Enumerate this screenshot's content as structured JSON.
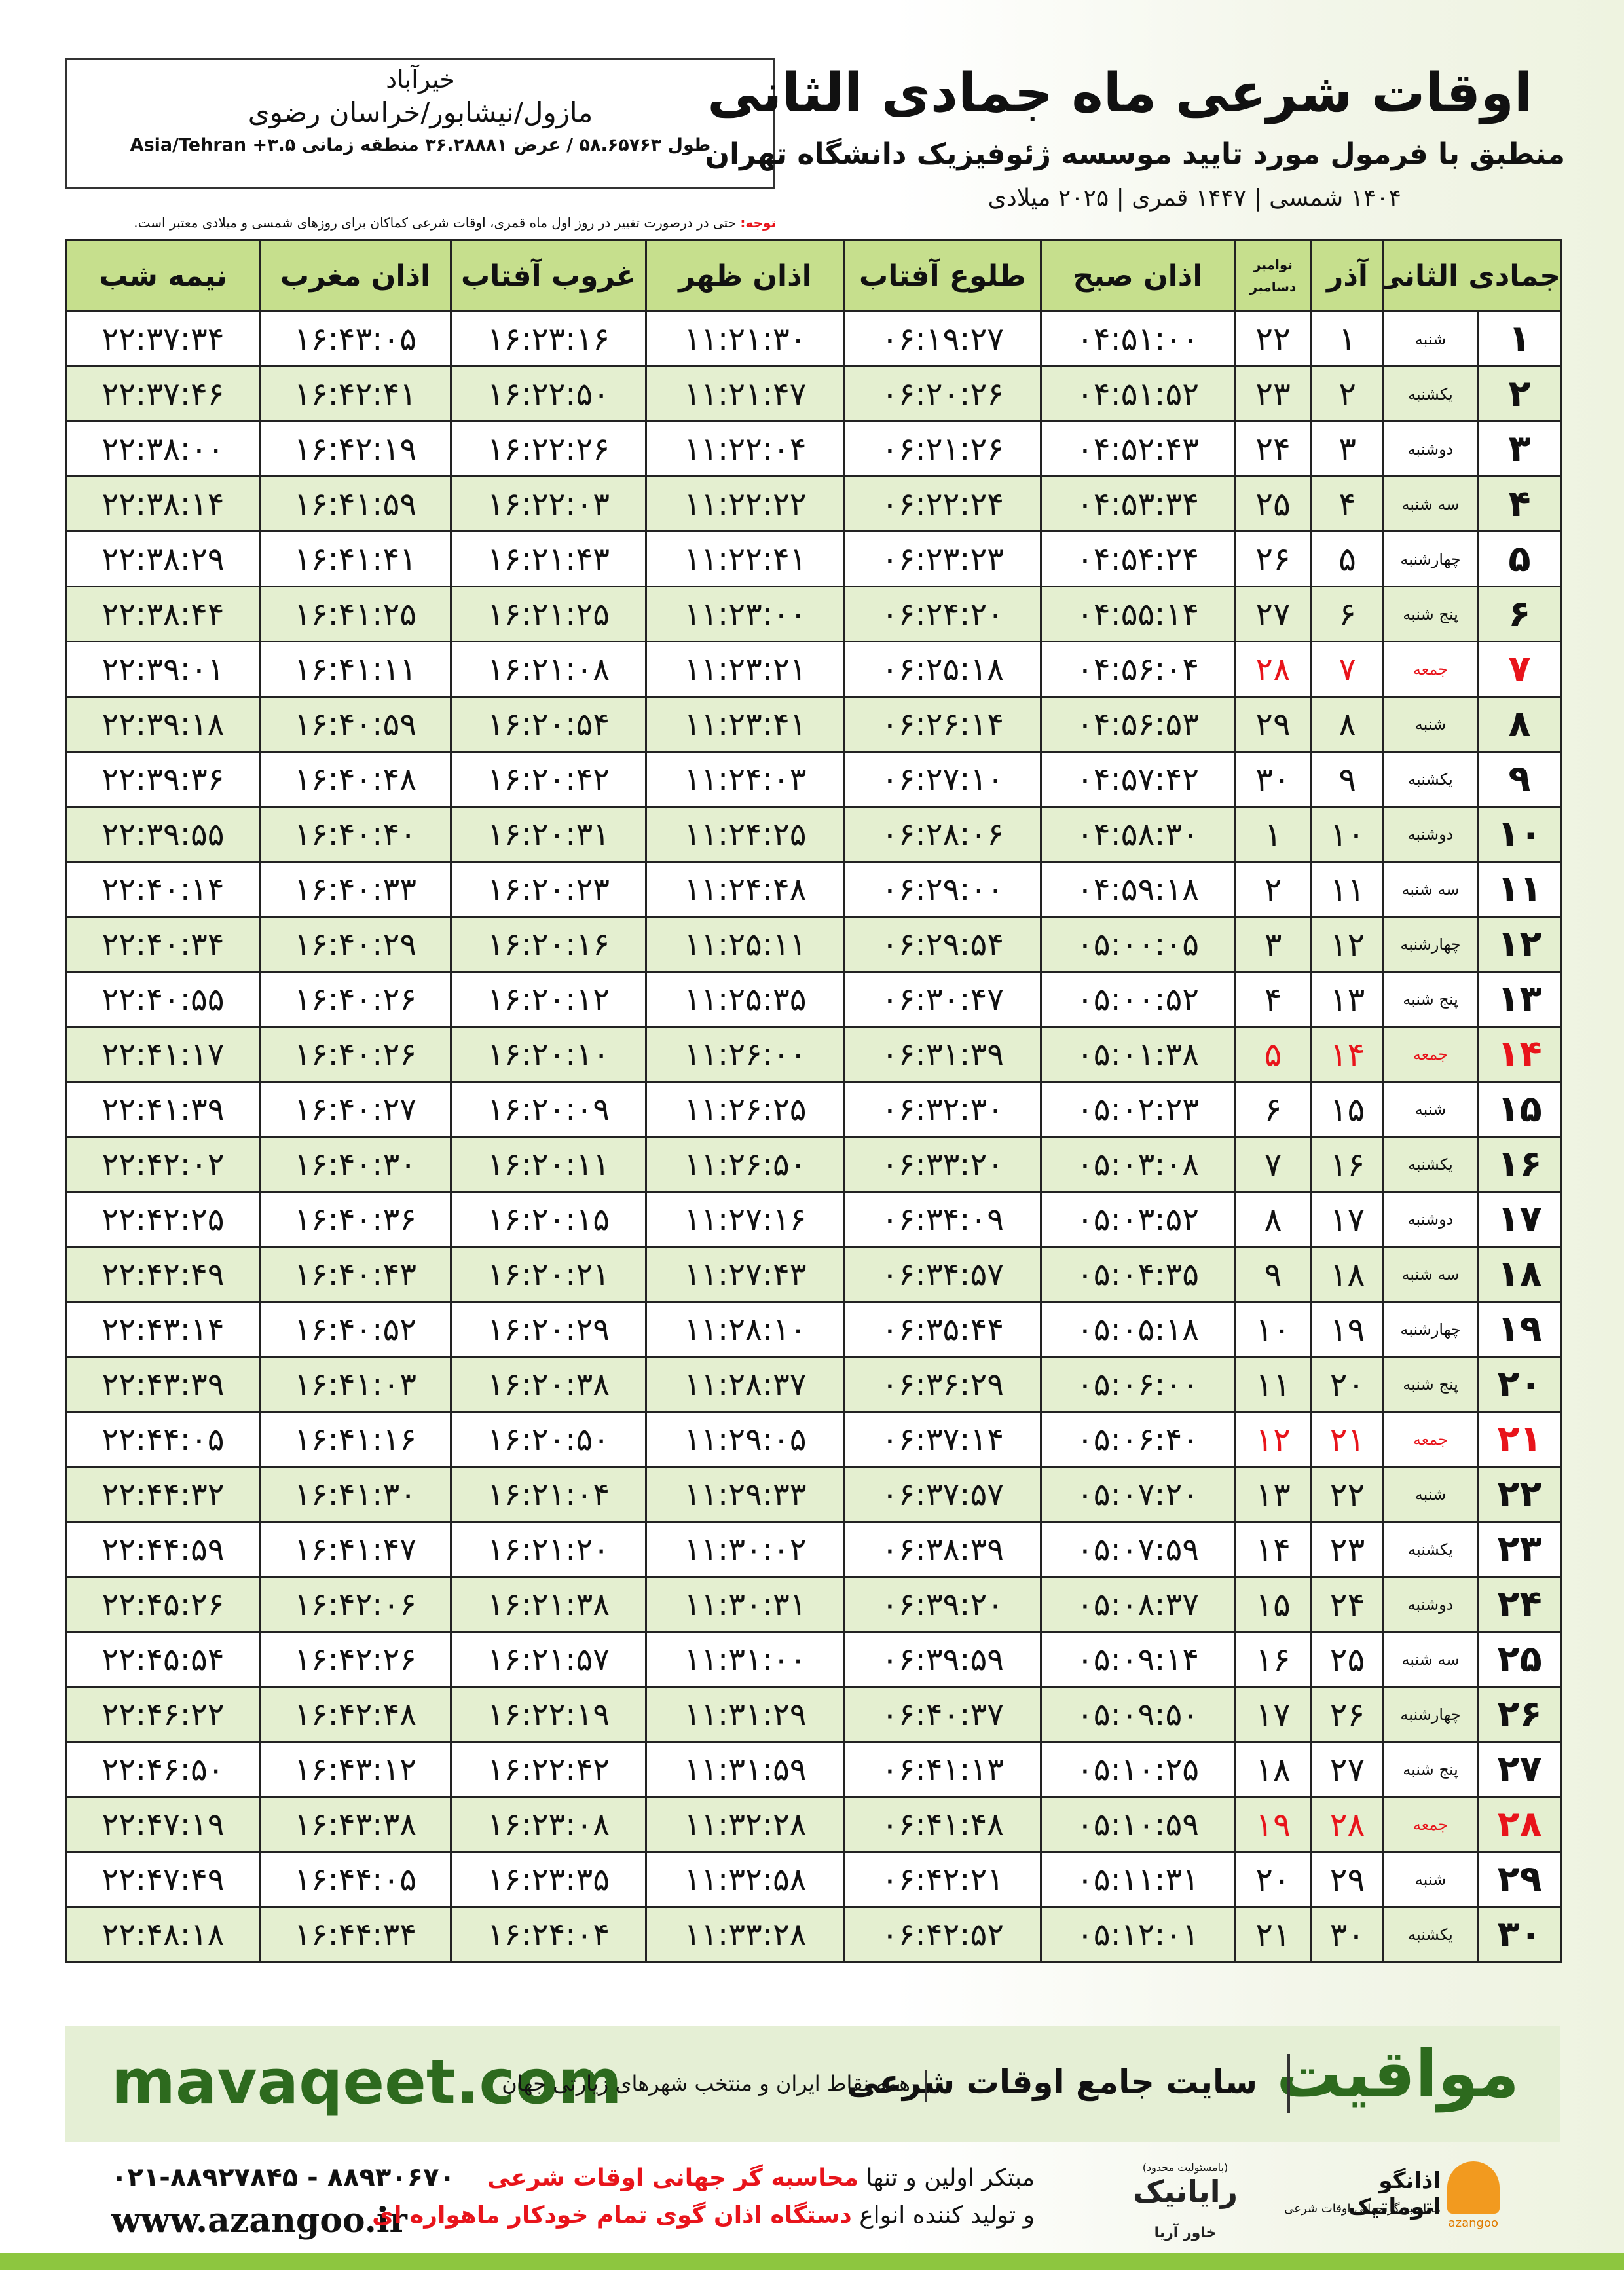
{
  "header": {
    "title": "اوقات شرعی ماه جمادی الثانی",
    "subtitle": "منطبق با فرمول مورد تایید موسسه ژئوفیزیک دانشگاه تهران",
    "years": "۱۴۰۴ شمسی | ۱۴۴۷ قمری | ۲۰۲۵ میلادی"
  },
  "location": {
    "city": "خیرآباد",
    "region": "مازول/نیشابور/خراسان رضوی",
    "coords": "طول ۵۸.۶۵۷۶۳ / عرض ۳۶.۲۸۸۸۱ منطقه زمانی ۳.۵+ Asia/Tehran"
  },
  "note": {
    "label": "توجه:",
    "text": "حتی در درصورت تغییر در روز اول ماه قمری، اوقات شرعی کماکان برای روزهای شمسی و میلادی معتبر است."
  },
  "table": {
    "highlight_color": "#e8141b",
    "columns": [
      "جمادی الثانی",
      "آذر",
      [
        "نوامبر",
        "دسامبر"
      ],
      "اذان صبح",
      "طلوع آفتاب",
      "اذان ظهر",
      "غروب آفتاب",
      "اذان مغرب",
      "نیمه شب"
    ],
    "rows": [
      {
        "highlight": false,
        "cells": [
          "۱",
          "شنبه",
          "۱",
          "۲۲",
          "۰۴:۵۱:۰۰",
          "۰۶:۱۹:۲۷",
          "۱۱:۲۱:۳۰",
          "۱۶:۲۳:۱۶",
          "۱۶:۴۳:۰۵",
          "۲۲:۳۷:۳۴"
        ]
      },
      {
        "highlight": false,
        "cells": [
          "۲",
          "یکشنبه",
          "۲",
          "۲۳",
          "۰۴:۵۱:۵۲",
          "۰۶:۲۰:۲۶",
          "۱۱:۲۱:۴۷",
          "۱۶:۲۲:۵۰",
          "۱۶:۴۲:۴۱",
          "۲۲:۳۷:۴۶"
        ]
      },
      {
        "highlight": false,
        "cells": [
          "۳",
          "دوشنبه",
          "۳",
          "۲۴",
          "۰۴:۵۲:۴۳",
          "۰۶:۲۱:۲۶",
          "۱۱:۲۲:۰۴",
          "۱۶:۲۲:۲۶",
          "۱۶:۴۲:۱۹",
          "۲۲:۳۸:۰۰"
        ]
      },
      {
        "highlight": false,
        "cells": [
          "۴",
          "سه شنبه",
          "۴",
          "۲۵",
          "۰۴:۵۳:۳۴",
          "۰۶:۲۲:۲۴",
          "۱۱:۲۲:۲۲",
          "۱۶:۲۲:۰۳",
          "۱۶:۴۱:۵۹",
          "۲۲:۳۸:۱۴"
        ]
      },
      {
        "highlight": false,
        "cells": [
          "۵",
          "چهارشنبه",
          "۵",
          "۲۶",
          "۰۴:۵۴:۲۴",
          "۰۶:۲۳:۲۳",
          "۱۱:۲۲:۴۱",
          "۱۶:۲۱:۴۳",
          "۱۶:۴۱:۴۱",
          "۲۲:۳۸:۲۹"
        ]
      },
      {
        "highlight": false,
        "cells": [
          "۶",
          "پنج شنبه",
          "۶",
          "۲۷",
          "۰۴:۵۵:۱۴",
          "۰۶:۲۴:۲۰",
          "۱۱:۲۳:۰۰",
          "۱۶:۲۱:۲۵",
          "۱۶:۴۱:۲۵",
          "۲۲:۳۸:۴۴"
        ]
      },
      {
        "highlight": true,
        "cells": [
          "۷",
          "جمعه",
          "۷",
          "۲۸",
          "۰۴:۵۶:۰۴",
          "۰۶:۲۵:۱۸",
          "۱۱:۲۳:۲۱",
          "۱۶:۲۱:۰۸",
          "۱۶:۴۱:۱۱",
          "۲۲:۳۹:۰۱"
        ]
      },
      {
        "highlight": false,
        "cells": [
          "۸",
          "شنبه",
          "۸",
          "۲۹",
          "۰۴:۵۶:۵۳",
          "۰۶:۲۶:۱۴",
          "۱۱:۲۳:۴۱",
          "۱۶:۲۰:۵۴",
          "۱۶:۴۰:۵۹",
          "۲۲:۳۹:۱۸"
        ]
      },
      {
        "highlight": false,
        "cells": [
          "۹",
          "یکشنبه",
          "۹",
          "۳۰",
          "۰۴:۵۷:۴۲",
          "۰۶:۲۷:۱۰",
          "۱۱:۲۴:۰۳",
          "۱۶:۲۰:۴۲",
          "۱۶:۴۰:۴۸",
          "۲۲:۳۹:۳۶"
        ]
      },
      {
        "highlight": false,
        "cells": [
          "۱۰",
          "دوشنبه",
          "۱۰",
          "۱",
          "۰۴:۵۸:۳۰",
          "۰۶:۲۸:۰۶",
          "۱۱:۲۴:۲۵",
          "۱۶:۲۰:۳۱",
          "۱۶:۴۰:۴۰",
          "۲۲:۳۹:۵۵"
        ]
      },
      {
        "highlight": false,
        "cells": [
          "۱۱",
          "سه شنبه",
          "۱۱",
          "۲",
          "۰۴:۵۹:۱۸",
          "۰۶:۲۹:۰۰",
          "۱۱:۲۴:۴۸",
          "۱۶:۲۰:۲۳",
          "۱۶:۴۰:۳۳",
          "۲۲:۴۰:۱۴"
        ]
      },
      {
        "highlight": false,
        "cells": [
          "۱۲",
          "چهارشنبه",
          "۱۲",
          "۳",
          "۰۵:۰۰:۰۵",
          "۰۶:۲۹:۵۴",
          "۱۱:۲۵:۱۱",
          "۱۶:۲۰:۱۶",
          "۱۶:۴۰:۲۹",
          "۲۲:۴۰:۳۴"
        ]
      },
      {
        "highlight": false,
        "cells": [
          "۱۳",
          "پنج شنبه",
          "۱۳",
          "۴",
          "۰۵:۰۰:۵۲",
          "۰۶:۳۰:۴۷",
          "۱۱:۲۵:۳۵",
          "۱۶:۲۰:۱۲",
          "۱۶:۴۰:۲۶",
          "۲۲:۴۰:۵۵"
        ]
      },
      {
        "highlight": true,
        "cells": [
          "۱۴",
          "جمعه",
          "۱۴",
          "۵",
          "۰۵:۰۱:۳۸",
          "۰۶:۳۱:۳۹",
          "۱۱:۲۶:۰۰",
          "۱۶:۲۰:۱۰",
          "۱۶:۴۰:۲۶",
          "۲۲:۴۱:۱۷"
        ]
      },
      {
        "highlight": false,
        "cells": [
          "۱۵",
          "شنبه",
          "۱۵",
          "۶",
          "۰۵:۰۲:۲۳",
          "۰۶:۳۲:۳۰",
          "۱۱:۲۶:۲۵",
          "۱۶:۲۰:۰۹",
          "۱۶:۴۰:۲۷",
          "۲۲:۴۱:۳۹"
        ]
      },
      {
        "highlight": false,
        "cells": [
          "۱۶",
          "یکشنبه",
          "۱۶",
          "۷",
          "۰۵:۰۳:۰۸",
          "۰۶:۳۳:۲۰",
          "۱۱:۲۶:۵۰",
          "۱۶:۲۰:۱۱",
          "۱۶:۴۰:۳۰",
          "۲۲:۴۲:۰۲"
        ]
      },
      {
        "highlight": false,
        "cells": [
          "۱۷",
          "دوشنبه",
          "۱۷",
          "۸",
          "۰۵:۰۳:۵۲",
          "۰۶:۳۴:۰۹",
          "۱۱:۲۷:۱۶",
          "۱۶:۲۰:۱۵",
          "۱۶:۴۰:۳۶",
          "۲۲:۴۲:۲۵"
        ]
      },
      {
        "highlight": false,
        "cells": [
          "۱۸",
          "سه شنبه",
          "۱۸",
          "۹",
          "۰۵:۰۴:۳۵",
          "۰۶:۳۴:۵۷",
          "۱۱:۲۷:۴۳",
          "۱۶:۲۰:۲۱",
          "۱۶:۴۰:۴۳",
          "۲۲:۴۲:۴۹"
        ]
      },
      {
        "highlight": false,
        "cells": [
          "۱۹",
          "چهارشنبه",
          "۱۹",
          "۱۰",
          "۰۵:۰۵:۱۸",
          "۰۶:۳۵:۴۴",
          "۱۱:۲۸:۱۰",
          "۱۶:۲۰:۲۹",
          "۱۶:۴۰:۵۲",
          "۲۲:۴۳:۱۴"
        ]
      },
      {
        "highlight": false,
        "cells": [
          "۲۰",
          "پنج شنبه",
          "۲۰",
          "۱۱",
          "۰۵:۰۶:۰۰",
          "۰۶:۳۶:۲۹",
          "۱۱:۲۸:۳۷",
          "۱۶:۲۰:۳۸",
          "۱۶:۴۱:۰۳",
          "۲۲:۴۳:۳۹"
        ]
      },
      {
        "highlight": true,
        "cells": [
          "۲۱",
          "جمعه",
          "۲۱",
          "۱۲",
          "۰۵:۰۶:۴۰",
          "۰۶:۳۷:۱۴",
          "۱۱:۲۹:۰۵",
          "۱۶:۲۰:۵۰",
          "۱۶:۴۱:۱۶",
          "۲۲:۴۴:۰۵"
        ]
      },
      {
        "highlight": false,
        "cells": [
          "۲۲",
          "شنبه",
          "۲۲",
          "۱۳",
          "۰۵:۰۷:۲۰",
          "۰۶:۳۷:۵۷",
          "۱۱:۲۹:۳۳",
          "۱۶:۲۱:۰۴",
          "۱۶:۴۱:۳۰",
          "۲۲:۴۴:۳۲"
        ]
      },
      {
        "highlight": false,
        "cells": [
          "۲۳",
          "یکشنبه",
          "۲۳",
          "۱۴",
          "۰۵:۰۷:۵۹",
          "۰۶:۳۸:۳۹",
          "۱۱:۳۰:۰۲",
          "۱۶:۲۱:۲۰",
          "۱۶:۴۱:۴۷",
          "۲۲:۴۴:۵۹"
        ]
      },
      {
        "highlight": false,
        "cells": [
          "۲۴",
          "دوشنبه",
          "۲۴",
          "۱۵",
          "۰۵:۰۸:۳۷",
          "۰۶:۳۹:۲۰",
          "۱۱:۳۰:۳۱",
          "۱۶:۲۱:۳۸",
          "۱۶:۴۲:۰۶",
          "۲۲:۴۵:۲۶"
        ]
      },
      {
        "highlight": false,
        "cells": [
          "۲۵",
          "سه شنبه",
          "۲۵",
          "۱۶",
          "۰۵:۰۹:۱۴",
          "۰۶:۳۹:۵۹",
          "۱۱:۳۱:۰۰",
          "۱۶:۲۱:۵۷",
          "۱۶:۴۲:۲۶",
          "۲۲:۴۵:۵۴"
        ]
      },
      {
        "highlight": false,
        "cells": [
          "۲۶",
          "چهارشنبه",
          "۲۶",
          "۱۷",
          "۰۵:۰۹:۵۰",
          "۰۶:۴۰:۳۷",
          "۱۱:۳۱:۲۹",
          "۱۶:۲۲:۱۹",
          "۱۶:۴۲:۴۸",
          "۲۲:۴۶:۲۲"
        ]
      },
      {
        "highlight": false,
        "cells": [
          "۲۷",
          "پنج شنبه",
          "۲۷",
          "۱۸",
          "۰۵:۱۰:۲۵",
          "۰۶:۴۱:۱۳",
          "۱۱:۳۱:۵۹",
          "۱۶:۲۲:۴۲",
          "۱۶:۴۳:۱۲",
          "۲۲:۴۶:۵۰"
        ]
      },
      {
        "highlight": true,
        "cells": [
          "۲۸",
          "جمعه",
          "۲۸",
          "۱۹",
          "۰۵:۱۰:۵۹",
          "۰۶:۴۱:۴۸",
          "۱۱:۳۲:۲۸",
          "۱۶:۲۳:۰۸",
          "۱۶:۴۳:۳۸",
          "۲۲:۴۷:۱۹"
        ]
      },
      {
        "highlight": false,
        "cells": [
          "۲۹",
          "شنبه",
          "۲۹",
          "۲۰",
          "۰۵:۱۱:۳۱",
          "۰۶:۴۲:۲۱",
          "۱۱:۳۲:۵۸",
          "۱۶:۲۳:۳۵",
          "۱۶:۴۴:۰۵",
          "۲۲:۴۷:۴۹"
        ]
      },
      {
        "highlight": false,
        "cells": [
          "۳۰",
          "یکشنبه",
          "۳۰",
          "۲۱",
          "۰۵:۱۲:۰۱",
          "۰۶:۴۲:۵۲",
          "۱۱:۳۳:۲۸",
          "۱۶:۲۴:۰۴",
          "۱۶:۴۴:۳۴",
          "۲۲:۴۸:۱۸"
        ]
      }
    ]
  },
  "banner": {
    "brand": "مواقیت",
    "tagline": "سایت جامع اوقات شرعی",
    "coverage": "همه نقاط ایران و منتخب شهرهای زیارتی جهان",
    "site": "mavaqeet.com"
  },
  "contact": {
    "phone": "۰۲۱-۸۸۹۲۷۸۴۵ - ۸۸۹۳۰۶۷۰",
    "web": "www.azangoo.ir",
    "line1": [
      "مبتکر اولین و تنها",
      "محاسبه گر جهانی اوقات شرعی"
    ],
    "line2": [
      "و تولید کننده انواع",
      "دستگاه اذان گوی تمام خودکار ماهواره ای"
    ]
  },
  "logos": {
    "rayanik": "رایانیک",
    "khavar": "خاور آریا",
    "limited": "(بامسئولیت محدود)",
    "azangoo_fa": "اذانگو اتوماتیک",
    "azangoo_sub": "محاسبه گر جهانی اوقات شرعی",
    "azangoo_en": "azangoo"
  }
}
